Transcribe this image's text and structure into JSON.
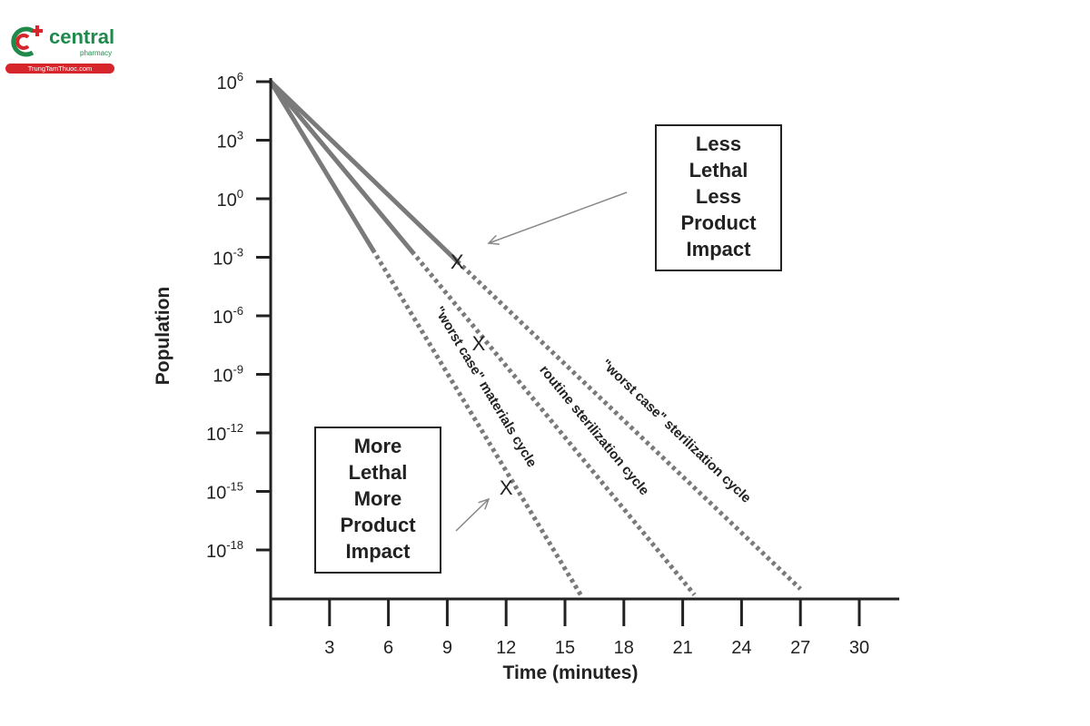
{
  "logo": {
    "name": "central",
    "sub": "pharmacy",
    "bar": "TrungTamThuoc.com",
    "colors": {
      "green": "#1f8a4c",
      "red": "#d7262b"
    }
  },
  "chart_data": {
    "type": "line",
    "xlabel": "Time (minutes)",
    "ylabel": "Population",
    "x_ticks": [
      3,
      6,
      9,
      12,
      15,
      18,
      21,
      24,
      27,
      30
    ],
    "x_range": [
      0,
      32
    ],
    "y_scale": "log10",
    "y_ticks": [
      {
        "exp": 6,
        "base": "10",
        "sup": "6"
      },
      {
        "exp": 3,
        "base": "10",
        "sup": "3"
      },
      {
        "exp": 0,
        "base": "10",
        "sup": "0"
      },
      {
        "exp": -3,
        "base": "10",
        "sup": "-3"
      },
      {
        "exp": -6,
        "base": "10",
        "sup": "-6"
      },
      {
        "exp": -9,
        "base": "10",
        "sup": "-9"
      },
      {
        "exp": -12,
        "base": "10",
        "sup": "-12"
      },
      {
        "exp": -15,
        "base": "10",
        "sup": "-15"
      },
      {
        "exp": -18,
        "base": "10",
        "sup": "-18"
      }
    ],
    "y_range_exp": [
      -20.5,
      6
    ],
    "series": [
      {
        "name": "\"worst case\" sterilization cycle",
        "solid": [
          [
            0,
            6
          ],
          [
            9.5,
            -3.2
          ]
        ],
        "dotted": [
          [
            9.5,
            -3.2
          ],
          [
            27,
            -20
          ]
        ],
        "marker": [
          9.5,
          -3.2
        ]
      },
      {
        "name": "routine sterilization cycle",
        "solid": [
          [
            0,
            6
          ],
          [
            7.2,
            -2.7
          ]
        ],
        "dotted": [
          [
            7.2,
            -2.7
          ],
          [
            21.6,
            -20.3
          ]
        ],
        "marker": [
          10.6,
          -7.4
        ]
      },
      {
        "name": "\"worst case\" materials cycle",
        "solid": [
          [
            0,
            6
          ],
          [
            5.2,
            -2.6
          ]
        ],
        "dotted": [
          [
            5.2,
            -2.6
          ],
          [
            15.8,
            -20.3
          ]
        ],
        "marker": [
          12.0,
          -14.8
        ]
      }
    ],
    "marker_symbol": "X",
    "annotations": [
      {
        "lines": [
          "Less",
          "Lethal",
          "Less",
          "Product",
          "Impact"
        ],
        "position": "top-right"
      },
      {
        "lines": [
          "More",
          "Lethal",
          "More",
          "Product",
          "Impact"
        ],
        "position": "bottom-left"
      }
    ],
    "colors": {
      "line": "#7a7a7a",
      "axis": "#222222"
    },
    "grid": false
  }
}
